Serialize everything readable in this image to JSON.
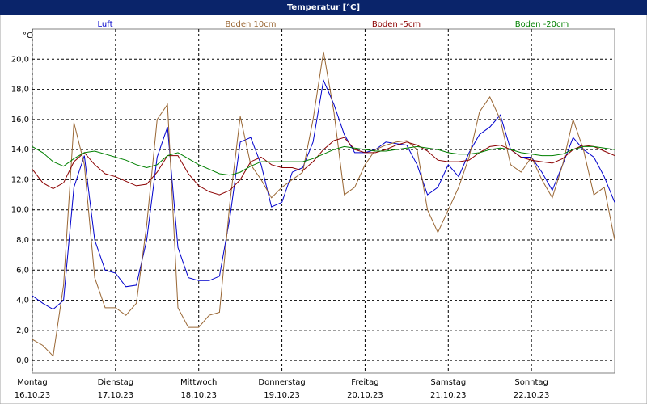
{
  "chart_data": {
    "type": "line",
    "title": "Temperatur [°C]",
    "y_unit": "°C",
    "x": [
      0,
      0.125,
      0.25,
      0.375,
      0.5,
      0.625,
      0.75,
      0.875,
      1,
      1.125,
      1.25,
      1.375,
      1.5,
      1.625,
      1.75,
      1.875,
      2,
      2.125,
      2.25,
      2.375,
      2.5,
      2.625,
      2.75,
      2.875,
      3,
      3.125,
      3.25,
      3.375,
      3.5,
      3.625,
      3.75,
      3.875,
      4,
      4.125,
      4.25,
      4.375,
      4.5,
      4.625,
      4.75,
      4.875,
      5,
      5.125,
      5.25,
      5.375,
      5.5,
      5.625,
      5.75,
      5.875,
      6,
      6.125,
      6.25,
      6.375,
      6.5,
      6.625,
      6.75,
      6.875,
      7
    ],
    "xlim": [
      0,
      7
    ],
    "xticks": [
      {
        "value": 0,
        "label": "Montag",
        "date": "16.10.23"
      },
      {
        "value": 1,
        "label": "Dienstag",
        "date": "17.10.23"
      },
      {
        "value": 2,
        "label": "Mittwoch",
        "date": "18.10.23"
      },
      {
        "value": 3,
        "label": "Donnerstag",
        "date": "19.10.23"
      },
      {
        "value": 4,
        "label": "Freitag",
        "date": "20.10.23"
      },
      {
        "value": 5,
        "label": "Samstag",
        "date": "21.10.23"
      },
      {
        "value": 6,
        "label": "Sonntag",
        "date": "22.10.23"
      }
    ],
    "ylim": [
      -0.85,
      22
    ],
    "yticks": [
      {
        "value": 0,
        "label": "0,0"
      },
      {
        "value": 2,
        "label": "2,0"
      },
      {
        "value": 4,
        "label": "4,0"
      },
      {
        "value": 6,
        "label": "6,0"
      },
      {
        "value": 8,
        "label": "8,0"
      },
      {
        "value": 10,
        "label": "10,0"
      },
      {
        "value": 12,
        "label": "12,0"
      },
      {
        "value": 14,
        "label": "14,0"
      },
      {
        "value": 16,
        "label": "16,0"
      },
      {
        "value": 18,
        "label": "18,0"
      },
      {
        "value": 20,
        "label": "20,0"
      }
    ],
    "grid": true,
    "series": [
      {
        "name": "Luft",
        "color": "#0000cc",
        "values": [
          4.3,
          3.8,
          3.4,
          4.0,
          11.5,
          13.6,
          8.0,
          6.0,
          5.8,
          4.9,
          5.0,
          8.0,
          13.5,
          15.5,
          7.5,
          5.5,
          5.3,
          5.3,
          5.6,
          9.5,
          14.5,
          14.8,
          13.0,
          10.2,
          10.5,
          12.5,
          12.8,
          14.5,
          18.6,
          17.0,
          15.0,
          13.8,
          13.8,
          14.0,
          14.5,
          14.4,
          14.3,
          13.0,
          11.0,
          11.5,
          13.0,
          12.2,
          13.8,
          15.0,
          15.5,
          16.3,
          14.0,
          13.5,
          13.5,
          12.5,
          11.3,
          13.0,
          14.8,
          14.0,
          13.5,
          12.2,
          10.5
        ]
      },
      {
        "name": "Boden 10cm",
        "color": "#996633",
        "values": [
          1.4,
          1.0,
          0.3,
          5.0,
          15.8,
          13.0,
          5.5,
          3.5,
          3.5,
          3.0,
          3.8,
          9.0,
          16.0,
          17.0,
          3.5,
          2.2,
          2.2,
          3.0,
          3.2,
          10.5,
          16.2,
          13.0,
          12.0,
          10.8,
          11.5,
          12.0,
          12.5,
          16.0,
          20.5,
          16.5,
          11.0,
          11.5,
          13.0,
          14.0,
          14.3,
          14.5,
          14.6,
          14.0,
          10.0,
          8.5,
          10.0,
          11.5,
          13.5,
          16.5,
          17.5,
          16.0,
          13.0,
          12.5,
          13.5,
          12.0,
          10.8,
          13.0,
          16.0,
          14.0,
          11.0,
          11.5,
          8.0
        ]
      },
      {
        "name": "Boden -5cm",
        "color": "#8b0000",
        "values": [
          12.7,
          11.8,
          11.4,
          11.8,
          13.2,
          13.8,
          13.0,
          12.4,
          12.2,
          11.9,
          11.6,
          11.7,
          12.5,
          13.6,
          13.6,
          12.4,
          11.6,
          11.2,
          11.0,
          11.3,
          12.0,
          13.2,
          13.5,
          13.0,
          12.8,
          12.8,
          12.6,
          13.2,
          14.0,
          14.6,
          14.8,
          14.0,
          13.8,
          13.8,
          14.0,
          14.3,
          14.5,
          14.3,
          13.9,
          13.3,
          13.2,
          13.2,
          13.3,
          13.8,
          14.2,
          14.3,
          14.0,
          13.5,
          13.3,
          13.2,
          13.1,
          13.4,
          14.0,
          14.3,
          14.2,
          13.9,
          13.6
        ]
      },
      {
        "name": "Boden -20cm",
        "color": "#008000",
        "values": [
          14.2,
          13.8,
          13.2,
          12.9,
          13.4,
          13.8,
          13.9,
          13.7,
          13.5,
          13.3,
          13.0,
          12.8,
          13.0,
          13.6,
          13.8,
          13.4,
          13.0,
          12.7,
          12.4,
          12.3,
          12.5,
          12.9,
          13.2,
          13.2,
          13.2,
          13.2,
          13.2,
          13.4,
          13.7,
          14.0,
          14.2,
          14.1,
          14.0,
          13.9,
          13.9,
          14.0,
          14.1,
          14.2,
          14.1,
          14.0,
          13.8,
          13.7,
          13.7,
          13.8,
          14.0,
          14.1,
          14.0,
          13.8,
          13.7,
          13.6,
          13.6,
          13.7,
          14.0,
          14.2,
          14.2,
          14.1,
          14.0
        ]
      }
    ]
  }
}
